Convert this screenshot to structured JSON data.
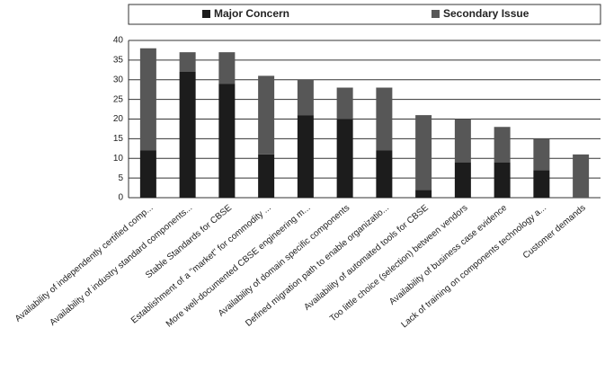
{
  "chart_data": {
    "type": "stacked_bar",
    "categories": [
      "Availability of independently certified comp...",
      "Availability of industry standard components...",
      "Stable Standards for CBSE",
      "Establishment of a \"market\" for commodity ...",
      "More well-documented CBSE engineering m...",
      "Availability of domain specific components",
      "Defined migration path to enable organizatio...",
      "Availability of automated tools for CBSE",
      "Too little choice (selection) between vendors",
      "Availability of business case evidence",
      "Lack of training on components technology a...",
      "Customer demands"
    ],
    "series": [
      {
        "name": "Major Concern",
        "color": "#1c1c1c",
        "values": [
          12,
          32,
          29,
          11,
          21,
          20,
          12,
          2,
          9,
          9,
          7,
          0
        ]
      },
      {
        "name": "Secondary Issue",
        "color": "#575757",
        "values": [
          26,
          5,
          8,
          20,
          9,
          8,
          16,
          19,
          11,
          9,
          8,
          11
        ]
      }
    ],
    "ylim": [
      0,
      40
    ],
    "yticks": [
      0,
      5,
      10,
      15,
      20,
      25,
      30,
      35,
      40
    ],
    "grid": true,
    "legend": "top"
  }
}
